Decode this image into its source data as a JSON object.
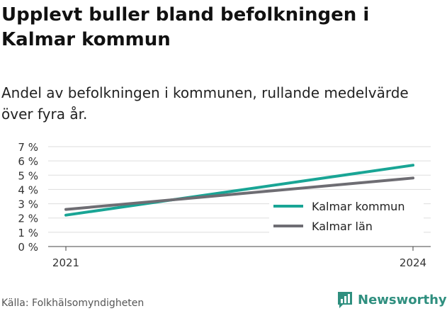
{
  "title": "Upplevt buller bland befolkningen i Kalmar kommun",
  "subtitle": "Andel av befolkningen i kommunen, rullande medelvärde över fyra år.",
  "source": "Källa: Folkhälsomyndigheten",
  "brand": {
    "name": "Newsworthy",
    "logo_icon": "bar-chart-logo-icon",
    "color": "#2f8f7f"
  },
  "chart_data": {
    "type": "line",
    "x": [
      2021,
      2024
    ],
    "yticks": [
      "0 %",
      "1 %",
      "2 %",
      "3 %",
      "4 %",
      "5 %",
      "6 %",
      "7 %"
    ],
    "ylim": [
      0,
      7
    ],
    "xticks": [
      "2021",
      "2024"
    ],
    "grid": true,
    "legend_position": "bottom-right",
    "series": [
      {
        "name": "Kalmar kommun",
        "color": "#19a595",
        "values": [
          2.2,
          5.7
        ]
      },
      {
        "name": "Kalmar län",
        "color": "#6e6d73",
        "values": [
          2.6,
          4.8
        ]
      }
    ]
  }
}
